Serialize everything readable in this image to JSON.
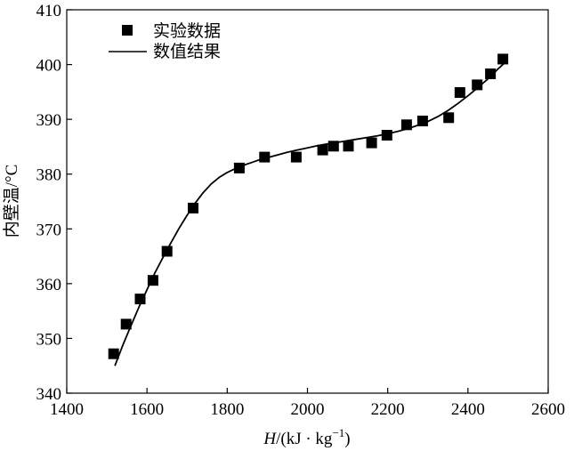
{
  "chart_data": {
    "type": "scatter",
    "xlabel_prefix": "H",
    "xlabel_units": "/(kJ · kg",
    "xlabel_exp": "−1",
    "xlabel_close": ")",
    "ylabel": "内壁温/°C",
    "xlim": [
      1400,
      2600
    ],
    "ylim": [
      340,
      410
    ],
    "xticks": [
      1400,
      1600,
      1800,
      2000,
      2200,
      2400,
      2600
    ],
    "yticks": [
      340,
      350,
      360,
      370,
      380,
      390,
      400,
      410
    ],
    "grid": false,
    "legend_position": "top-left",
    "series": [
      {
        "name": "实验数据",
        "kind": "scatter",
        "marker": "square",
        "color": "#000000",
        "x": [
          1517,
          1548,
          1583,
          1615,
          1650,
          1715,
          1830,
          1893,
          1972,
          2038,
          2065,
          2102,
          2160,
          2198,
          2247,
          2287,
          2352,
          2380,
          2423,
          2456,
          2487
        ],
        "y": [
          347.2,
          352.6,
          357.2,
          360.6,
          365.9,
          373.8,
          381.1,
          383.1,
          383.1,
          384.4,
          385.1,
          385.1,
          385.7,
          387.1,
          389.0,
          389.7,
          390.3,
          394.9,
          396.3,
          398.3,
          401.0
        ]
      },
      {
        "name": "数值结果",
        "kind": "line",
        "color": "#000000",
        "x": [
          1520,
          1540,
          1560,
          1580,
          1600,
          1620,
          1640,
          1660,
          1680,
          1700,
          1720,
          1740,
          1760,
          1780,
          1800,
          1820,
          1840,
          1860,
          1880,
          1900,
          1925,
          1950,
          1975,
          2000,
          2025,
          2050,
          2075,
          2100,
          2125,
          2150,
          2175,
          2200,
          2225,
          2250,
          2275,
          2300,
          2325,
          2350,
          2375,
          2400,
          2425,
          2450,
          2475,
          2490
        ],
        "y": [
          345.0,
          348.8,
          352.3,
          355.7,
          358.9,
          362.0,
          364.8,
          367.5,
          370.1,
          372.5,
          374.7,
          376.6,
          378.2,
          379.4,
          380.3,
          381.0,
          381.6,
          382.1,
          382.6,
          383.0,
          383.5,
          384.0,
          384.4,
          384.8,
          385.2,
          385.5,
          385.8,
          386.1,
          386.4,
          386.7,
          387.0,
          387.4,
          387.8,
          388.3,
          388.9,
          389.6,
          390.5,
          391.6,
          392.9,
          394.3,
          395.8,
          397.4,
          399.2,
          400.2
        ]
      }
    ]
  }
}
